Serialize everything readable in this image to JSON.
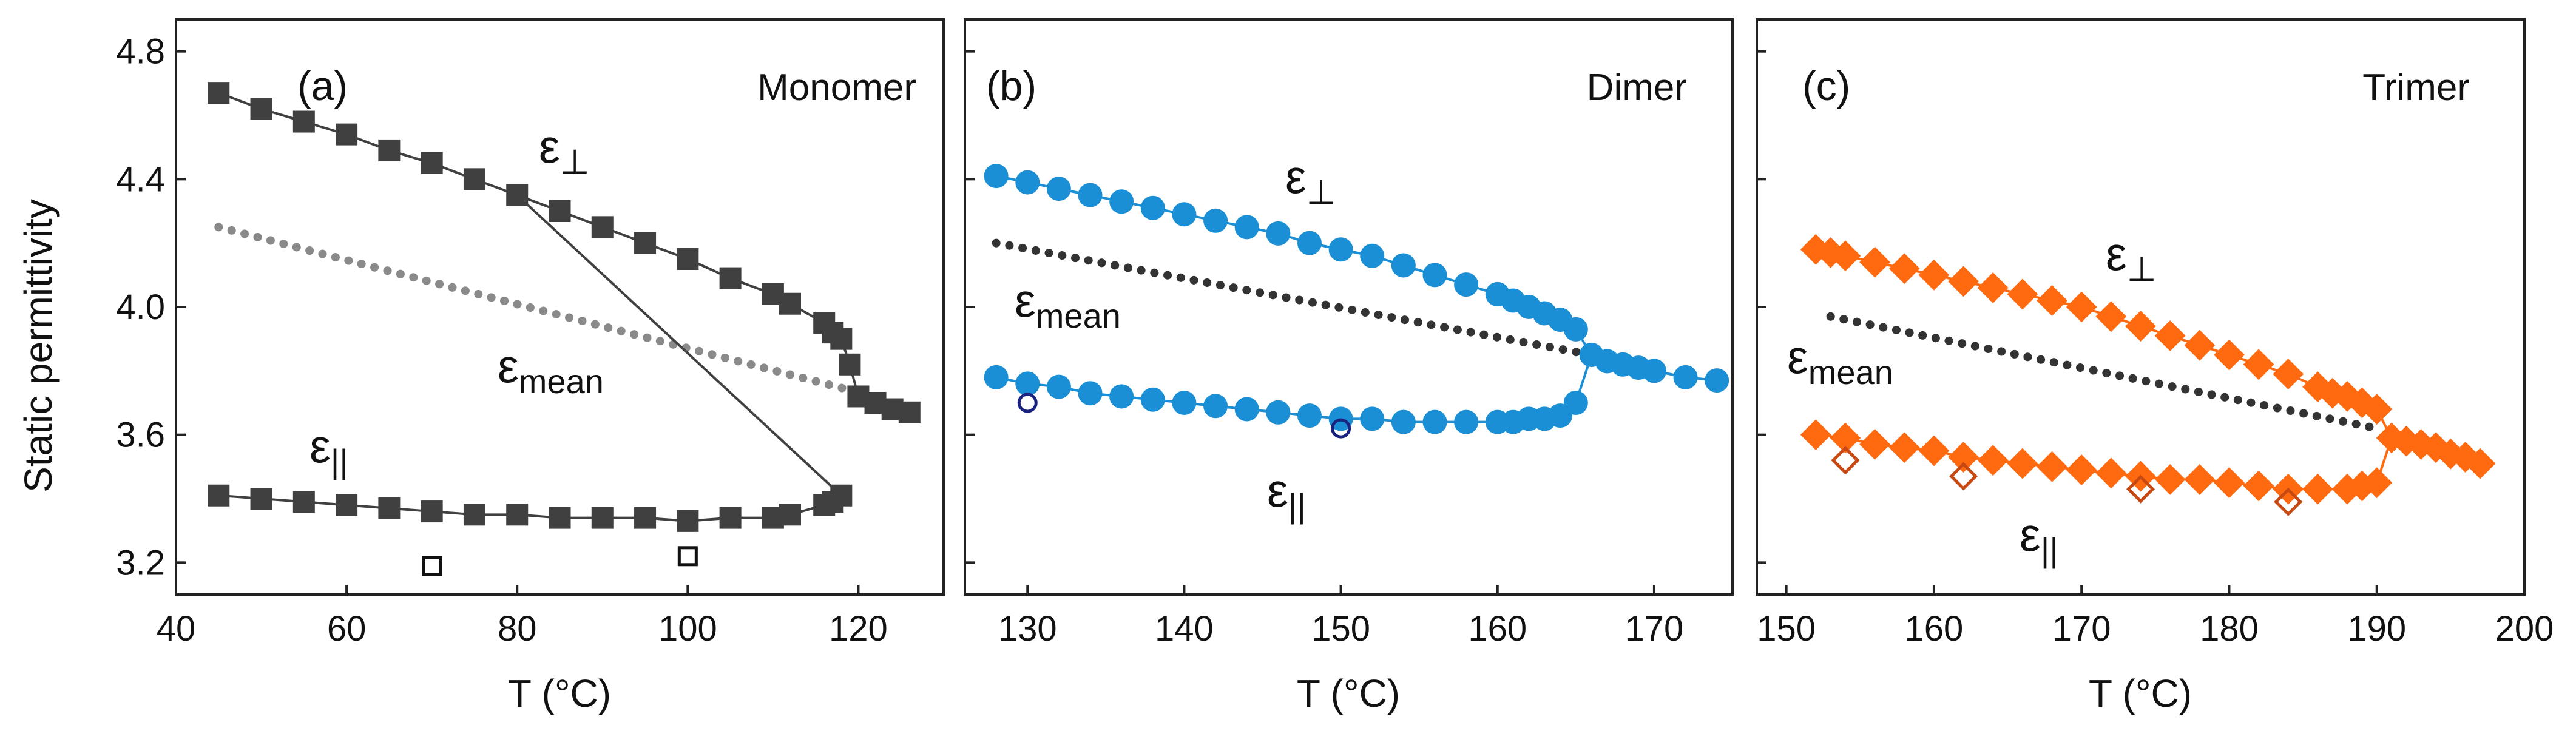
{
  "figure": {
    "ylabel": "Static permittivity",
    "y_ticks": [
      "3.2",
      "3.6",
      "4.0",
      "4.4",
      "4.8"
    ]
  },
  "chart_data": [
    {
      "type": "line",
      "panel_label": "(a)",
      "title": "Monomer",
      "xlabel": "T (°C)",
      "ylabel": "Static permittivity",
      "xlim": [
        40,
        130
      ],
      "ylim": [
        3.1,
        4.9
      ],
      "x_ticks": [
        40,
        60,
        80,
        100,
        120
      ],
      "y_ticks": [
        3.2,
        3.6,
        4.0,
        4.4,
        4.8
      ],
      "color": "#404040",
      "mean_color": "#8a8a8a",
      "marker": "square",
      "series": [
        {
          "name": "ε⊥",
          "symbol": "ε",
          "subscript": "⊥",
          "x": [
            45,
            50,
            55,
            60,
            65,
            70,
            75,
            80,
            85,
            90,
            95,
            100,
            105,
            110,
            112,
            116,
            117,
            118,
            119,
            120,
            122,
            124,
            126
          ],
          "y": [
            4.67,
            4.62,
            4.58,
            4.54,
            4.49,
            4.45,
            4.4,
            4.35,
            4.3,
            4.25,
            4.2,
            4.15,
            4.09,
            4.04,
            4.01,
            3.95,
            3.92,
            3.9,
            3.82,
            3.72,
            3.7,
            3.68,
            3.67
          ]
        },
        {
          "name": "ε||",
          "symbol": "ε",
          "subscript": "||",
          "x": [
            45,
            50,
            55,
            60,
            65,
            70,
            75,
            80,
            85,
            90,
            95,
            100,
            105,
            110,
            112,
            116,
            117,
            118
          ],
          "y": [
            3.41,
            3.4,
            3.39,
            3.38,
            3.37,
            3.36,
            3.35,
            3.35,
            3.34,
            3.34,
            3.34,
            3.33,
            3.34,
            3.34,
            3.35,
            3.38,
            3.39,
            3.41
          ]
        },
        {
          "name": "εmean",
          "symbol": "ε",
          "subscript": "mean",
          "style": "dotted",
          "x": [
            45,
            119
          ],
          "y": [
            4.25,
            3.74
          ]
        },
        {
          "name": "open markers",
          "style": "open",
          "x": [
            70,
            100
          ],
          "y": [
            3.19,
            3.22
          ]
        }
      ]
    },
    {
      "type": "line",
      "panel_label": "(b)",
      "title": "Dimer",
      "xlabel": "T (°C)",
      "ylabel": "Static permittivity",
      "xlim": [
        126,
        175
      ],
      "ylim": [
        3.1,
        4.9
      ],
      "x_ticks": [
        130,
        140,
        150,
        160,
        170
      ],
      "y_ticks": [
        3.2,
        3.6,
        4.0,
        4.4,
        4.8
      ],
      "color": "#1a8fd6",
      "mean_color": "#333333",
      "open_color": "#1a237e",
      "marker": "circle",
      "series": [
        {
          "name": "ε⊥",
          "symbol": "ε",
          "subscript": "⊥",
          "x": [
            128,
            130,
            132,
            134,
            136,
            138,
            140,
            142,
            144,
            146,
            148,
            150,
            152,
            154,
            156,
            158,
            160,
            161,
            162,
            163,
            164,
            165,
            166,
            167,
            168,
            169,
            170,
            172,
            174
          ],
          "y": [
            4.41,
            4.39,
            4.37,
            4.35,
            4.33,
            4.31,
            4.29,
            4.27,
            4.25,
            4.23,
            4.2,
            4.18,
            4.16,
            4.13,
            4.1,
            4.07,
            4.04,
            4.02,
            4.0,
            3.98,
            3.96,
            3.93,
            3.85,
            3.83,
            3.82,
            3.81,
            3.8,
            3.78,
            3.77
          ]
        },
        {
          "name": "ε||",
          "symbol": "ε",
          "subscript": "||",
          "x": [
            128,
            130,
            132,
            134,
            136,
            138,
            140,
            142,
            144,
            146,
            148,
            150,
            152,
            154,
            156,
            158,
            160,
            161,
            162,
            163,
            164,
            165
          ],
          "y": [
            3.78,
            3.76,
            3.75,
            3.73,
            3.72,
            3.71,
            3.7,
            3.69,
            3.68,
            3.67,
            3.66,
            3.65,
            3.65,
            3.64,
            3.64,
            3.64,
            3.64,
            3.64,
            3.65,
            3.65,
            3.66,
            3.7
          ]
        },
        {
          "name": "εmean",
          "symbol": "ε",
          "subscript": "mean",
          "style": "dotted",
          "x": [
            128,
            166
          ],
          "y": [
            4.2,
            3.85
          ]
        },
        {
          "name": "open markers",
          "style": "open",
          "x": [
            130,
            150
          ],
          "y": [
            3.7,
            3.62
          ]
        }
      ]
    },
    {
      "type": "line",
      "panel_label": "(c)",
      "title": "Trimer",
      "xlabel": "T (°C)",
      "ylabel": "Static permittivity",
      "xlim": [
        148,
        200
      ],
      "ylim": [
        3.1,
        4.9
      ],
      "x_ticks": [
        150,
        160,
        170,
        180,
        190,
        200
      ],
      "y_ticks": [
        3.2,
        3.6,
        4.0,
        4.4,
        4.8
      ],
      "color": "#ff6a10",
      "mean_color": "#333333",
      "open_color": "#c84812",
      "marker": "diamond",
      "series": [
        {
          "name": "ε⊥",
          "symbol": "ε",
          "subscript": "⊥",
          "x": [
            152,
            153,
            154,
            156,
            158,
            160,
            162,
            164,
            166,
            168,
            170,
            172,
            174,
            176,
            178,
            180,
            182,
            184,
            186,
            187,
            188,
            189,
            190,
            191,
            192,
            193,
            194,
            195,
            196,
            197
          ],
          "y": [
            4.18,
            4.17,
            4.16,
            4.14,
            4.12,
            4.1,
            4.08,
            4.06,
            4.04,
            4.02,
            4.0,
            3.97,
            3.94,
            3.91,
            3.88,
            3.85,
            3.82,
            3.79,
            3.75,
            3.73,
            3.72,
            3.7,
            3.68,
            3.59,
            3.58,
            3.57,
            3.56,
            3.54,
            3.53,
            3.51
          ]
        },
        {
          "name": "ε||",
          "symbol": "ε",
          "subscript": "||",
          "x": [
            152,
            154,
            156,
            158,
            160,
            162,
            164,
            166,
            168,
            170,
            172,
            174,
            176,
            178,
            180,
            182,
            184,
            186,
            188,
            189,
            190
          ],
          "y": [
            3.6,
            3.59,
            3.57,
            3.56,
            3.55,
            3.53,
            3.52,
            3.51,
            3.5,
            3.49,
            3.48,
            3.47,
            3.46,
            3.46,
            3.45,
            3.44,
            3.43,
            3.43,
            3.43,
            3.44,
            3.45
          ]
        },
        {
          "name": "εmean",
          "symbol": "ε",
          "subscript": "mean",
          "style": "dotted",
          "x": [
            153,
            190
          ],
          "y": [
            3.97,
            3.62
          ]
        },
        {
          "name": "open markers",
          "style": "open",
          "x": [
            154,
            162,
            174,
            184
          ],
          "y": [
            3.52,
            3.47,
            3.43,
            3.39
          ]
        }
      ]
    }
  ]
}
